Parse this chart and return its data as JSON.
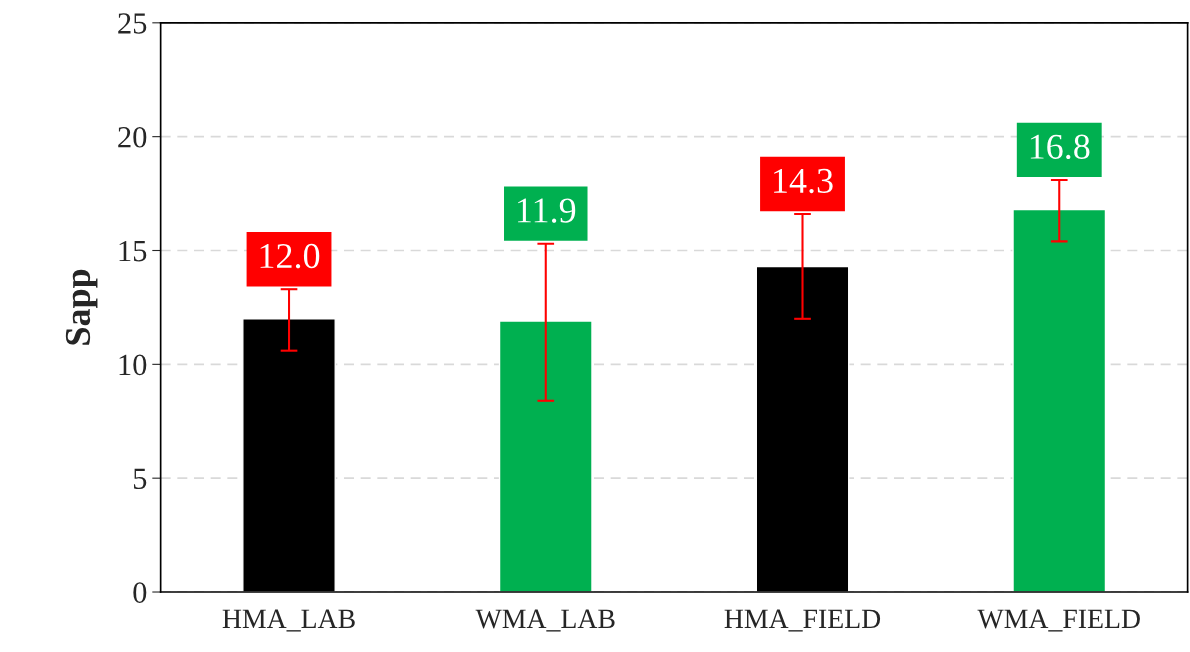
{
  "chart_data": {
    "type": "bar",
    "ylabel": "Sapp",
    "categories": [
      "HMA_LAB",
      "WMA_LAB",
      "HMA_FIELD",
      "WMA_FIELD"
    ],
    "values": [
      12.0,
      11.9,
      14.3,
      16.8
    ],
    "colors": [
      "#000000",
      "#00b050",
      "#000000",
      "#00b050"
    ],
    "errors": [
      [
        10.6,
        13.3
      ],
      [
        8.4,
        15.3
      ],
      [
        12.0,
        16.6
      ],
      [
        15.4,
        18.1
      ]
    ],
    "value_labels": [
      "12.0",
      "11.9",
      "14.3",
      "16.8"
    ],
    "ylim": [
      0,
      25
    ],
    "yticks": [
      0,
      5,
      10,
      15,
      20,
      25
    ],
    "grid": "y"
  }
}
